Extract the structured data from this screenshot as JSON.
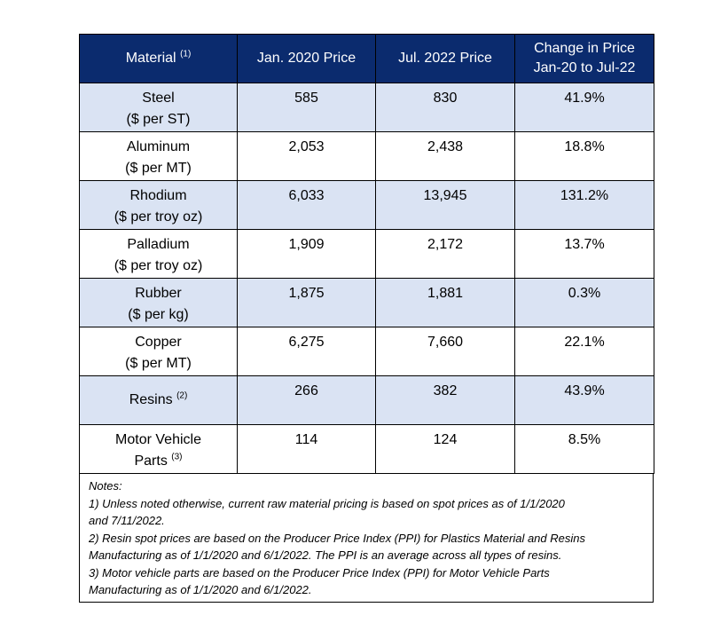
{
  "table": {
    "headers": [
      {
        "text": "Material",
        "sup": "(1)"
      },
      {
        "text": "Jan. 2020 Price"
      },
      {
        "text": "Jul. 2022 Price"
      },
      {
        "line1": "Change in Price",
        "line2": "Jan-20 to Jul-22"
      }
    ],
    "rows": [
      {
        "name": "Steel",
        "unit": "($ per ST)",
        "jan2020": "585",
        "jul2022": "830",
        "change": "41.9%"
      },
      {
        "name": "Aluminum",
        "unit": "($ per MT)",
        "jan2020": "2,053",
        "jul2022": "2,438",
        "change": "18.8%"
      },
      {
        "name": "Rhodium",
        "unit": "($ per troy oz)",
        "jan2020": "6,033",
        "jul2022": "13,945",
        "change": "131.2%"
      },
      {
        "name": "Palladium",
        "unit": "($ per troy oz)",
        "jan2020": "1,909",
        "jul2022": "2,172",
        "change": "13.7%"
      },
      {
        "name": "Rubber",
        "unit": "($ per kg)",
        "jan2020": "1,875",
        "jul2022": "1,881",
        "change": "0.3%"
      },
      {
        "name": "Copper",
        "unit": "($ per MT)",
        "jan2020": "6,275",
        "jul2022": "7,660",
        "change": "22.1%"
      },
      {
        "name": "Resins",
        "sup": "(2)",
        "jan2020": "266",
        "jul2022": "382",
        "change": "43.9%"
      },
      {
        "name": "Motor Vehicle",
        "name2": "Parts",
        "sup": "(3)",
        "jan2020": "114",
        "jul2022": "124",
        "change": "8.5%"
      }
    ]
  },
  "notes": {
    "heading": "Notes:",
    "lines": [
      "1) Unless noted otherwise, current raw material pricing is based on spot prices as of 1/1/2020",
      "and 7/11/2022.",
      "2) Resin spot prices are based on the Producer Price Index (PPI) for Plastics Material and Resins",
      "Manufacturing as of 1/1/2020 and 6/1/2022. The PPI is an average across all types of resins.",
      "3) Motor vehicle parts are based on the Producer Price Index (PPI) for Motor Vehicle Parts",
      "Manufacturing as of 1/1/2020 and 6/1/2022."
    ]
  }
}
